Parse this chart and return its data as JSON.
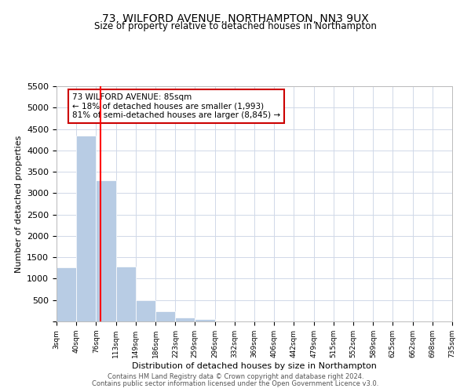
{
  "title": "73, WILFORD AVENUE, NORTHAMPTON, NN3 9UX",
  "subtitle": "Size of property relative to detached houses in Northampton",
  "xlabel": "Distribution of detached houses by size in Northampton",
  "ylabel": "Number of detached properties",
  "bar_color": "#b8cce4",
  "bar_edge_color": "#b8cce4",
  "grid_color": "#d0d8e8",
  "background_color": "#ffffff",
  "bins": [
    3,
    40,
    76,
    113,
    149,
    186,
    223,
    259,
    296,
    332,
    369,
    406,
    442,
    479,
    515,
    552,
    589,
    625,
    662,
    698,
    735
  ],
  "values": [
    1270,
    4350,
    3300,
    1290,
    490,
    240,
    90,
    50,
    0,
    0,
    0,
    0,
    0,
    0,
    0,
    0,
    0,
    0,
    0,
    0
  ],
  "tick_labels": [
    "3sqm",
    "40sqm",
    "76sqm",
    "113sqm",
    "149sqm",
    "186sqm",
    "223sqm",
    "259sqm",
    "296sqm",
    "332sqm",
    "369sqm",
    "406sqm",
    "442sqm",
    "479sqm",
    "515sqm",
    "552sqm",
    "589sqm",
    "625sqm",
    "662sqm",
    "698sqm",
    "735sqm"
  ],
  "ylim": [
    0,
    5500
  ],
  "yticks": [
    0,
    500,
    1000,
    1500,
    2000,
    2500,
    3000,
    3500,
    4000,
    4500,
    5000,
    5500
  ],
  "red_line_x": 85,
  "annotation_title": "73 WILFORD AVENUE: 85sqm",
  "annotation_line1": "← 18% of detached houses are smaller (1,993)",
  "annotation_line2": "81% of semi-detached houses are larger (8,845) →",
  "annotation_box_color": "#ffffff",
  "annotation_box_edge": "#cc0000",
  "footer1": "Contains HM Land Registry data © Crown copyright and database right 2024.",
  "footer2": "Contains public sector information licensed under the Open Government Licence v3.0."
}
